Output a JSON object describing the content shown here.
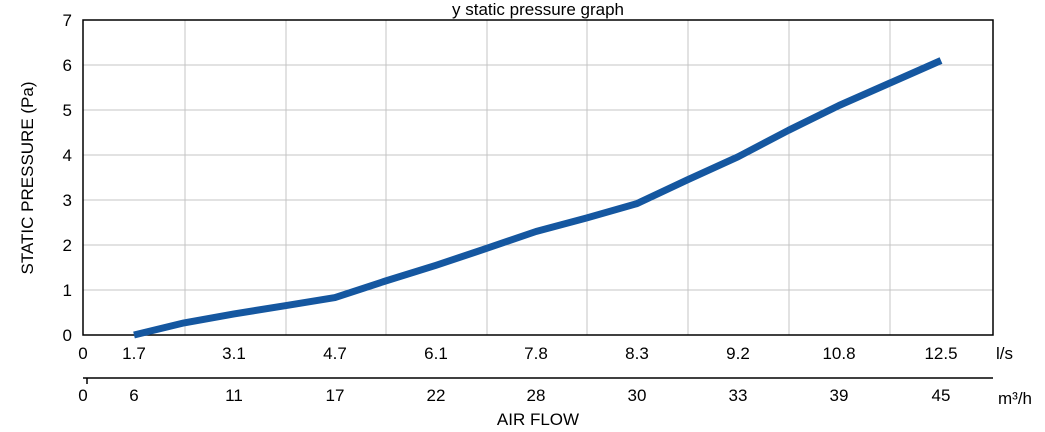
{
  "chart_data": {
    "type": "line",
    "title": "y static pressure graph",
    "ylabel": "STATIC PRESSURE (Pa)",
    "xlabel": "AIR FLOW",
    "ylim": [
      0,
      7
    ],
    "y_ticks": [
      "0",
      "1",
      "2",
      "3",
      "4",
      "5",
      "6",
      "7"
    ],
    "x_primary_unit": "l/s",
    "x_primary_ticks": [
      "0",
      "1.7",
      "3.1",
      "4.7",
      "6.1",
      "7.8",
      "8.3",
      "9.2",
      "10.8",
      "12.5"
    ],
    "x_secondary_unit": "m³/h",
    "x_secondary_ticks": [
      "0",
      "6",
      "11",
      "17",
      "22",
      "28",
      "30",
      "33",
      "39",
      "45"
    ],
    "grid": true,
    "line_color": "#1557a0",
    "series": [
      {
        "x": [
          1.7,
          2.4,
          3.1,
          3.9,
          4.7,
          5.4,
          6.1,
          6.95,
          7.8,
          8.05,
          8.3,
          8.75,
          9.2,
          10.0,
          10.8,
          11.65,
          12.5
        ],
        "values": [
          0.0,
          0.27,
          0.47,
          0.65,
          0.83,
          1.2,
          1.55,
          1.92,
          2.3,
          2.6,
          2.92,
          3.45,
          3.96,
          4.55,
          5.1,
          5.6,
          6.1
        ]
      }
    ]
  }
}
